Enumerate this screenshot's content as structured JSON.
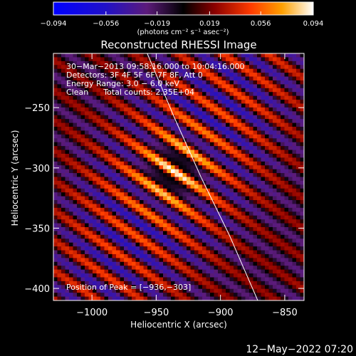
{
  "chart_data": {
    "type": "heatmap",
    "title": "Reconstructed RHESSI Image",
    "xlabel": "Heliocentric X (arcsec)",
    "ylabel": "Heliocentric Y (arcsec)",
    "xlim": [
      -1030,
      -835
    ],
    "ylim": [
      -410,
      -205
    ],
    "x_ticks": [
      -1000,
      -950,
      -900,
      -850
    ],
    "x_tick_labels": [
      "−1000",
      "−950",
      "−900",
      "−850"
    ],
    "y_ticks": [
      -250,
      -300,
      -350,
      -400
    ],
    "y_tick_labels": [
      "−250",
      "−300",
      "−350",
      "−400"
    ],
    "colorbar": {
      "min": -0.094,
      "max": 0.094,
      "ticks": [
        -0.094,
        -0.056,
        -0.019,
        0.019,
        0.056,
        0.094
      ],
      "tick_labels": [
        "−0.094",
        "−0.056",
        "−0.019",
        "0.019",
        "0.056",
        "0.094"
      ],
      "unit_label": "(photons cm⁻² s⁻¹ asec⁻²)"
    },
    "annotations": [
      "30−Mar−2013 09:58:16.000 to 10:04:16.000",
      "Detectors: 3F 4F 5F 6F 7F 8F, Att 0",
      "Energy Range: 3.0 − 6.0 keV",
      "Clean      Total counts: 2.35E+04"
    ],
    "peak_label": "Position of Peak = [−936,−303]",
    "peak_position": [
      -936,
      -303
    ],
    "limb_curve": {
      "x": [
        -957,
        -936,
        -915,
        -893,
        -871
      ],
      "y": [
        -205,
        -258,
        -308,
        -356,
        -410
      ]
    },
    "colors": {
      "background": "#000000",
      "foreground": "#ffffff"
    }
  },
  "footer": {
    "timestamp": "12−May−2022 07:20"
  }
}
